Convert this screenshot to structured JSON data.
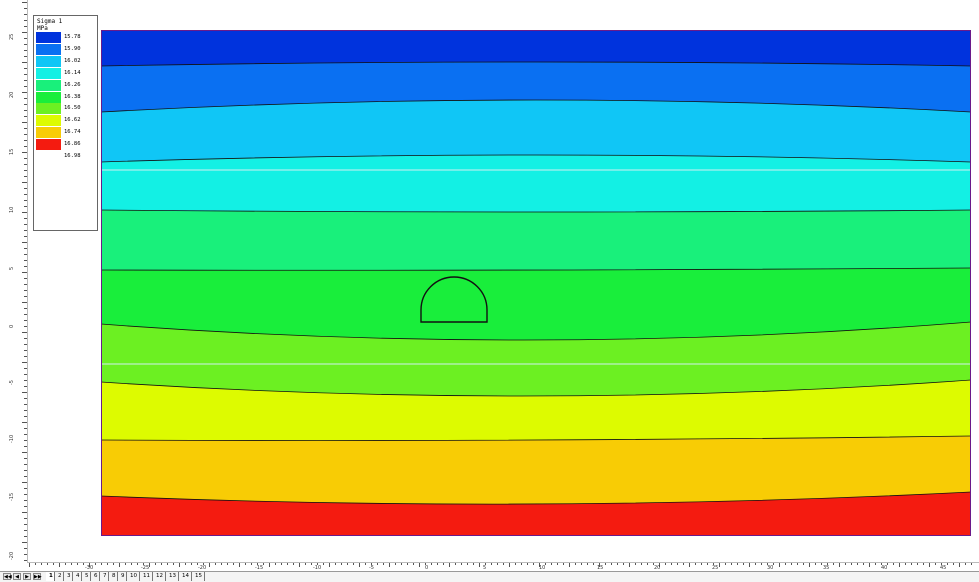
{
  "legend": {
    "title": "Sigma 1",
    "unit": "MPa",
    "entries": [
      {
        "value": "15.78",
        "color": "#0033dd"
      },
      {
        "value": "15.90",
        "color": "#0a70f2"
      },
      {
        "value": "16.02",
        "color": "#10c6f6"
      },
      {
        "value": "16.14",
        "color": "#13f0e4"
      },
      {
        "value": "16.26",
        "color": "#19f07b"
      },
      {
        "value": "16.38",
        "color": "#19ee3b"
      },
      {
        "value": "16.50",
        "color": "#6cf022"
      },
      {
        "value": "16.62",
        "color": "#ddfb00"
      },
      {
        "value": "16.74",
        "color": "#f8cc05"
      },
      {
        "value": "16.86",
        "color": "#f41b10"
      },
      {
        "value": "16.98",
        "color": "#ffffff"
      }
    ]
  },
  "axes": {
    "x_ticks": [
      "-30",
      "-25",
      "-20",
      "-15",
      "-10",
      "-5",
      "0",
      "5",
      "10",
      "15",
      "20",
      "25",
      "30",
      "35",
      "40",
      "45"
    ],
    "y_ticks": [
      "25",
      "20",
      "15",
      "10",
      "5",
      "0",
      "-5",
      "-10",
      "-15",
      "-20"
    ]
  },
  "tabs": {
    "nav": [
      "◀◀",
      "◀",
      "▶",
      "▶▶"
    ],
    "items": [
      "1",
      "2",
      "3",
      "4",
      "5",
      "6",
      "7",
      "8",
      "9",
      "10",
      "11",
      "12",
      "13",
      "14",
      "15"
    ],
    "active_index": 0
  },
  "colors": {
    "boundary": "#6a1a8a",
    "contour_line": "#111111",
    "excavation_line": "#111111"
  }
}
